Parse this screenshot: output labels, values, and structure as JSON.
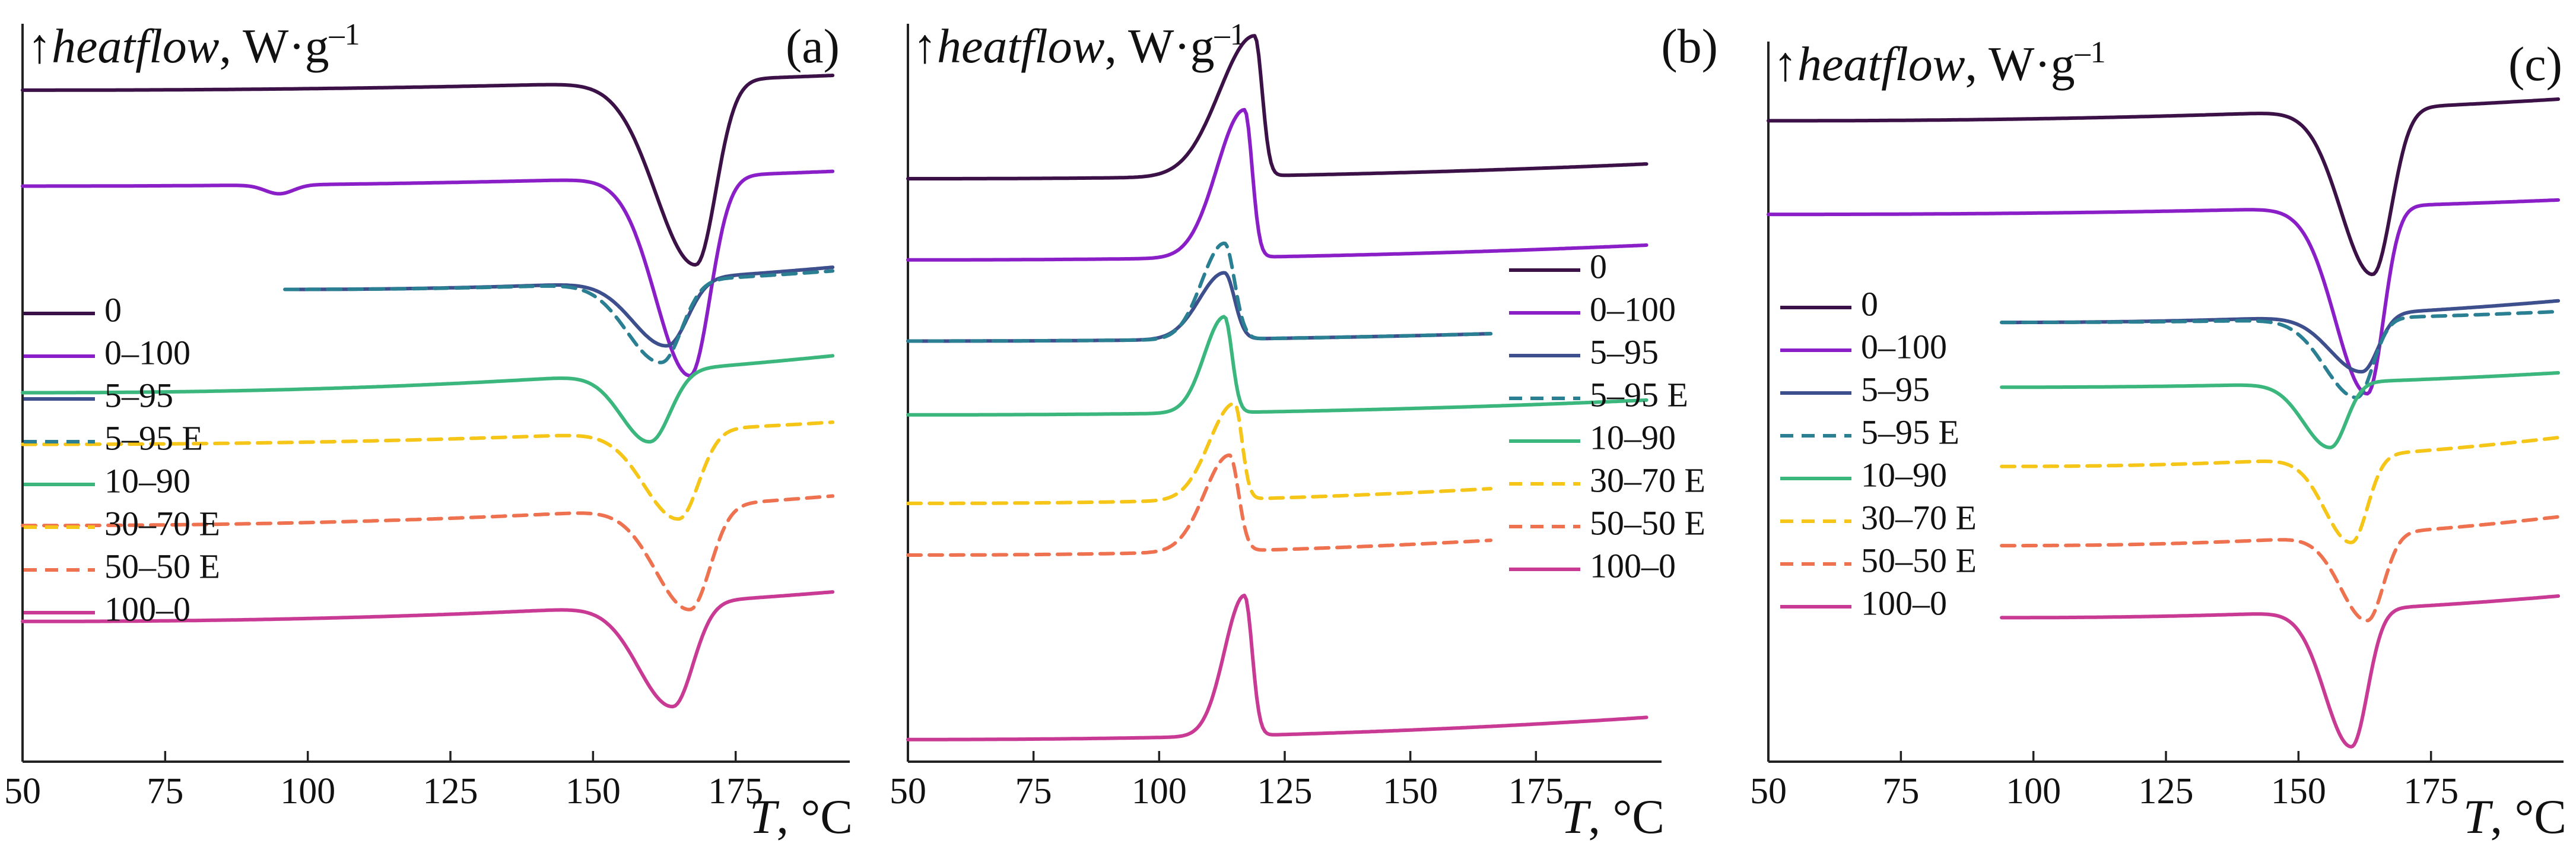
{
  "series_styles": [
    {
      "name": "0",
      "color": "#3b1147",
      "dash": false
    },
    {
      "name": "0–100",
      "color": "#8a1fc8",
      "dash": false
    },
    {
      "name": "5–95",
      "color": "#3d4f8c",
      "dash": false
    },
    {
      "name": "5–95 E",
      "color": "#2a7f92",
      "dash": true
    },
    {
      "name": "10–90",
      "color": "#3bb77e",
      "dash": false
    },
    {
      "name": "30–70 E",
      "color": "#f5c518",
      "dash": true
    },
    {
      "name": "50–50 E",
      "color": "#ee7150",
      "dash": true
    },
    {
      "name": "100–0",
      "color": "#c83a94",
      "dash": false
    }
  ],
  "chart_data": [
    {
      "type": "line",
      "panel": "(a)",
      "title": "",
      "ylabel_arrow": "↑",
      "ylabel_italic": "heatflow",
      "ylabel_units": ", W·g",
      "ylabel_sup": "–1",
      "xlabel_italic": "T",
      "xlabel_units": ", °C",
      "xlim": [
        50,
        195
      ],
      "ylim": [
        0,
        100
      ],
      "xticks": [
        50,
        75,
        100,
        125,
        150,
        175
      ],
      "legend_position": "left",
      "series": [
        {
          "name": "0",
          "kind": "endo",
          "x_start": 50,
          "x_end": 192,
          "base": 91,
          "end": 93,
          "drift": 0,
          "peak_x": 168,
          "depth": 25,
          "w_left": 7,
          "w_right": 3.5,
          "extra_dip_x": null
        },
        {
          "name": "0–100",
          "kind": "endo",
          "x_start": 50,
          "x_end": 192,
          "base": 78,
          "end": 80,
          "drift": 0,
          "peak_x": 167,
          "depth": 27,
          "w_left": 6,
          "w_right": 3.5,
          "extra_dip_x": 95
        },
        {
          "name": "5–95",
          "kind": "endo",
          "x_start": 96,
          "x_end": 192,
          "base": 64,
          "end": 67,
          "drift": 0,
          "peak_x": 163,
          "depth": 9,
          "w_left": 6,
          "w_right": 3.5,
          "extra_dip_x": null
        },
        {
          "name": "5–95 E",
          "kind": "endo",
          "x_start": 96,
          "x_end": 192,
          "base": 64,
          "end": 66.5,
          "drift": 0,
          "peak_x": 162,
          "depth": 11,
          "w_left": 6,
          "w_right": 3.5,
          "extra_dip_x": null
        },
        {
          "name": "10–90",
          "kind": "endo",
          "x_start": 50,
          "x_end": 192,
          "base": 50,
          "end": 55,
          "drift": 0,
          "peak_x": 160,
          "depth": 9.5,
          "w_left": 5,
          "w_right": 3.5,
          "extra_dip_x": null
        },
        {
          "name": "30–70 E",
          "kind": "endo",
          "x_start": 50,
          "x_end": 192,
          "base": 43,
          "end": 46,
          "drift": 0,
          "peak_x": 165,
          "depth": 12,
          "w_left": 6,
          "w_right": 3.5,
          "extra_dip_x": null
        },
        {
          "name": "50–50 E",
          "kind": "endo",
          "x_start": 50,
          "x_end": 192,
          "base": 32,
          "end": 36,
          "drift": 0,
          "peak_x": 167,
          "depth": 14,
          "w_left": 6,
          "w_right": 3.5,
          "extra_dip_x": null
        },
        {
          "name": "100–0",
          "kind": "endo",
          "x_start": 50,
          "x_end": 192,
          "base": 19,
          "end": 23,
          "drift": 0,
          "peak_x": 164,
          "depth": 14,
          "w_left": 6,
          "w_right": 3.5,
          "extra_dip_x": null
        }
      ]
    },
    {
      "type": "line",
      "panel": "(b)",
      "title": "",
      "ylabel_arrow": "↑",
      "ylabel_italic": "heatflow",
      "ylabel_units": ", W·g",
      "ylabel_sup": "–1",
      "xlabel_italic": "T",
      "xlabel_units": ", °C",
      "xlim": [
        50,
        200
      ],
      "ylim": [
        0,
        100
      ],
      "xticks": [
        50,
        75,
        100,
        125,
        150,
        175
      ],
      "legend_position": "right",
      "series": [
        {
          "name": "0",
          "kind": "exo",
          "x_start": 50,
          "x_end": 197,
          "base": 79,
          "end": 81,
          "drift": 0.01,
          "peak_x": 119,
          "depth": 19,
          "w_left": 7,
          "w_right": 1.5,
          "extra_dip_x": null
        },
        {
          "name": "0–100",
          "kind": "exo",
          "x_start": 50,
          "x_end": 197,
          "base": 68,
          "end": 70,
          "drift": 0.01,
          "peak_x": 117,
          "depth": 20,
          "w_left": 5.5,
          "w_right": 1.5,
          "extra_dip_x": null
        },
        {
          "name": "5–95",
          "kind": "exo",
          "x_start": 50,
          "x_end": 166,
          "base": 57,
          "end": 58,
          "drift": 0.01,
          "peak_x": 113,
          "depth": 9,
          "w_left": 5,
          "w_right": 2,
          "extra_dip_x": null
        },
        {
          "name": "5–95 E",
          "kind": "exo",
          "x_start": 50,
          "x_end": 166,
          "base": 57,
          "end": 58,
          "drift": 0.01,
          "peak_x": 113,
          "depth": 13,
          "w_left": 4.5,
          "w_right": 2,
          "extra_dip_x": null
        },
        {
          "name": "10–90",
          "kind": "exo",
          "x_start": 50,
          "x_end": 197,
          "base": 47,
          "end": 49,
          "drift": 0.01,
          "peak_x": 113,
          "depth": 13,
          "w_left": 4,
          "w_right": 1.5,
          "extra_dip_x": null
        },
        {
          "name": "30–70 E",
          "kind": "exo",
          "x_start": 50,
          "x_end": 166,
          "base": 35,
          "end": 37,
          "drift": 0.01,
          "peak_x": 115,
          "depth": 13,
          "w_left": 5,
          "w_right": 1.5,
          "extra_dip_x": null
        },
        {
          "name": "50–50 E",
          "kind": "exo",
          "x_start": 50,
          "x_end": 166,
          "base": 28,
          "end": 30,
          "drift": 0.01,
          "peak_x": 114,
          "depth": 13,
          "w_left": 5,
          "w_right": 1.8,
          "extra_dip_x": null
        },
        {
          "name": "100–0",
          "kind": "exo",
          "x_start": 50,
          "x_end": 197,
          "base": 3,
          "end": 6,
          "drift": 0.01,
          "peak_x": 117,
          "depth": 19,
          "w_left": 4,
          "w_right": 1.5,
          "extra_dip_x": null
        }
      ]
    },
    {
      "type": "line",
      "panel": "(c)",
      "title": "",
      "ylabel_arrow": "↑",
      "ylabel_italic": "heatflow",
      "ylabel_units": ", W·g",
      "ylabel_sup": "–1",
      "xlabel_italic": "T",
      "xlabel_units": ", °C",
      "xlim": [
        50,
        200
      ],
      "ylim": [
        0,
        100
      ],
      "xticks": [
        50,
        75,
        100,
        125,
        150,
        175
      ],
      "legend_position": "left",
      "series": [
        {
          "name": "0",
          "kind": "endo",
          "x_start": 50,
          "x_end": 199,
          "base": 89,
          "end": 92,
          "drift": 0,
          "peak_x": 164,
          "depth": 23,
          "w_left": 6,
          "w_right": 3.5,
          "extra_dip_x": null
        },
        {
          "name": "0–100",
          "kind": "endo",
          "x_start": 50,
          "x_end": 199,
          "base": 76,
          "end": 78,
          "drift": 0,
          "peak_x": 163,
          "depth": 26,
          "w_left": 6,
          "w_right": 3,
          "extra_dip_x": null
        },
        {
          "name": "5–95",
          "kind": "endo",
          "x_start": 94,
          "x_end": 199,
          "base": 61,
          "end": 64,
          "drift": 0,
          "peak_x": 162,
          "depth": 8,
          "w_left": 6,
          "w_right": 3,
          "extra_dip_x": null
        },
        {
          "name": "5–95 E",
          "kind": "endo",
          "x_start": 94,
          "x_end": 199,
          "base": 61,
          "end": 62.5,
          "drift": 0,
          "peak_x": 161,
          "depth": 11,
          "w_left": 6,
          "w_right": 3,
          "extra_dip_x": null
        },
        {
          "name": "10–90",
          "kind": "endo",
          "x_start": 94,
          "x_end": 199,
          "base": 52,
          "end": 54,
          "drift": 0,
          "peak_x": 156,
          "depth": 9,
          "w_left": 5,
          "w_right": 3,
          "extra_dip_x": null
        },
        {
          "name": "30–70 E",
          "kind": "endo",
          "x_start": 94,
          "x_end": 199,
          "base": 41,
          "end": 45,
          "drift": 0,
          "peak_x": 160,
          "depth": 12,
          "w_left": 5,
          "w_right": 3,
          "extra_dip_x": null
        },
        {
          "name": "50–50 E",
          "kind": "endo",
          "x_start": 94,
          "x_end": 199,
          "base": 30,
          "end": 34,
          "drift": 0,
          "peak_x": 163,
          "depth": 12,
          "w_left": 5,
          "w_right": 3,
          "extra_dip_x": null
        },
        {
          "name": "100–0",
          "kind": "endo",
          "x_start": 94,
          "x_end": 199,
          "base": 20,
          "end": 23,
          "drift": 0,
          "peak_x": 160,
          "depth": 19,
          "w_left": 5,
          "w_right": 3,
          "extra_dip_x": null
        }
      ]
    }
  ]
}
